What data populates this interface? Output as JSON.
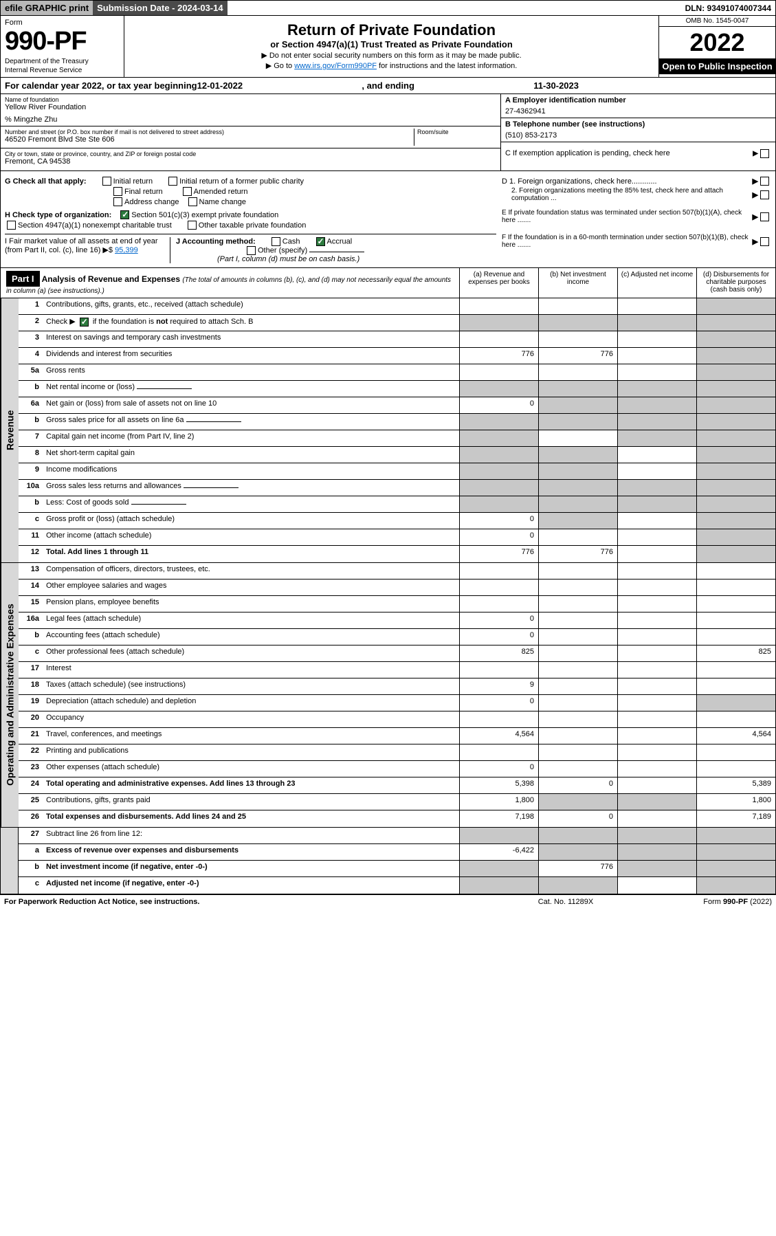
{
  "topbar": {
    "efile": "efile GRAPHIC print",
    "submission": "Submission Date - 2024-03-14",
    "dln": "DLN: 93491074007344"
  },
  "header": {
    "form_label": "Form",
    "form_number": "990-PF",
    "dept1": "Department of the Treasury",
    "dept2": "Internal Revenue Service",
    "title": "Return of Private Foundation",
    "subtitle": "or Section 4947(a)(1) Trust Treated as Private Foundation",
    "instr1": "▶ Do not enter social security numbers on this form as it may be made public.",
    "instr2_pre": "▶ Go to ",
    "instr2_link": "www.irs.gov/Form990PF",
    "instr2_post": " for instructions and the latest information.",
    "omb": "OMB No. 1545-0047",
    "year": "2022",
    "open": "Open to Public Inspection"
  },
  "calendar": {
    "text": "For calendar year 2022, or tax year beginning ",
    "begin": "12-01-2022",
    "mid": ", and ending ",
    "end": "11-30-2023"
  },
  "foundation": {
    "name_label": "Name of foundation",
    "name": "Yellow River Foundation",
    "care_of": "% Mingzhe Zhu",
    "addr_label": "Number and street (or P.O. box number if mail is not delivered to street address)",
    "addr": "46520 Fremont Blvd Ste Ste 606",
    "room_label": "Room/suite",
    "city_label": "City or town, state or province, country, and ZIP or foreign postal code",
    "city": "Fremont, CA  94538",
    "ein_label": "A Employer identification number",
    "ein": "27-4362941",
    "phone_label": "B Telephone number (see instructions)",
    "phone": "(510) 853-2173",
    "c_label": "C If exemption application is pending, check here",
    "d1": "D 1. Foreign organizations, check here............",
    "d2": "2. Foreign organizations meeting the 85% test, check here and attach computation ...",
    "e_label": "E  If private foundation status was terminated under section 507(b)(1)(A), check here .......",
    "f_label": "F  If the foundation is in a 60-month termination under section 507(b)(1)(B), check here ......."
  },
  "check": {
    "g_label": "G Check all that apply:",
    "initial": "Initial return",
    "final": "Final return",
    "address": "Address change",
    "initial_former": "Initial return of a former public charity",
    "amended": "Amended return",
    "name_change": "Name change",
    "h_label": "H Check type of organization:",
    "h_501c3": "Section 501(c)(3) exempt private foundation",
    "h_4947": "Section 4947(a)(1) nonexempt charitable trust",
    "h_other": "Other taxable private foundation",
    "i_label": "I Fair market value of all assets at end of year (from Part II, col. (c), line 16) ▶$ ",
    "i_val": "95,399",
    "j_label": "J Accounting method:",
    "j_cash": "Cash",
    "j_accrual": "Accrual",
    "j_other": "Other (specify)",
    "j_note": "(Part I, column (d) must be on cash basis.)"
  },
  "part1": {
    "label": "Part I",
    "title": "Analysis of Revenue and Expenses ",
    "note": "(The total of amounts in columns (b), (c), and (d) may not necessarily equal the amounts in column (a) (see instructions).)",
    "col_a": "(a)   Revenue and expenses per books",
    "col_b": "(b)  Net investment income",
    "col_c": "(c)  Adjusted net income",
    "col_d": "(d)  Disbursements for charitable purposes (cash basis only)"
  },
  "revenue_label": "Revenue",
  "expenses_label": "Operating and Administrative Expenses",
  "rows": [
    {
      "num": "1",
      "desc": "Contributions, gifts, grants, etc., received (attach schedule)",
      "a": "",
      "b": "",
      "c": "",
      "d": "",
      "shade_c": false,
      "shade_d": true
    },
    {
      "num": "2",
      "desc": "Check ▶ ☑ if the foundation is not required to attach Sch. B",
      "a": "",
      "b": "",
      "c": "",
      "d": "",
      "shade_a": true,
      "shade_b": true,
      "shade_c": true,
      "shade_d": true,
      "checkbox": true
    },
    {
      "num": "3",
      "desc": "Interest on savings and temporary cash investments",
      "a": "",
      "b": "",
      "c": "",
      "d": "",
      "shade_d": true
    },
    {
      "num": "4",
      "desc": "Dividends and interest from securities",
      "a": "776",
      "b": "776",
      "c": "",
      "d": "",
      "shade_d": true
    },
    {
      "num": "5a",
      "desc": "Gross rents",
      "a": "",
      "b": "",
      "c": "",
      "d": "",
      "shade_d": true
    },
    {
      "num": "b",
      "desc": "Net rental income or (loss)",
      "a": "",
      "b": "",
      "c": "",
      "d": "",
      "shade_a": true,
      "shade_b": true,
      "shade_c": true,
      "shade_d": true,
      "sub": true
    },
    {
      "num": "6a",
      "desc": "Net gain or (loss) from sale of assets not on line 10",
      "a": "0",
      "b": "",
      "c": "",
      "d": "",
      "shade_b": true,
      "shade_c": true,
      "shade_d": true
    },
    {
      "num": "b",
      "desc": "Gross sales price for all assets on line 6a",
      "a": "",
      "b": "",
      "c": "",
      "d": "",
      "shade_a": true,
      "shade_b": true,
      "shade_c": true,
      "shade_d": true,
      "sub": true
    },
    {
      "num": "7",
      "desc": "Capital gain net income (from Part IV, line 2)",
      "a": "",
      "b": "",
      "c": "",
      "d": "",
      "shade_a": true,
      "shade_c": true,
      "shade_d": true
    },
    {
      "num": "8",
      "desc": "Net short-term capital gain",
      "a": "",
      "b": "",
      "c": "",
      "d": "",
      "shade_a": true,
      "shade_b": true,
      "shade_d": true
    },
    {
      "num": "9",
      "desc": "Income modifications",
      "a": "",
      "b": "",
      "c": "",
      "d": "",
      "shade_a": true,
      "shade_b": true,
      "shade_d": true
    },
    {
      "num": "10a",
      "desc": "Gross sales less returns and allowances",
      "a": "",
      "b": "",
      "c": "",
      "d": "",
      "shade_a": true,
      "shade_b": true,
      "shade_c": true,
      "shade_d": true,
      "sub": true
    },
    {
      "num": "b",
      "desc": "Less: Cost of goods sold",
      "a": "",
      "b": "",
      "c": "",
      "d": "",
      "shade_a": true,
      "shade_b": true,
      "shade_c": true,
      "shade_d": true,
      "sub": true
    },
    {
      "num": "c",
      "desc": "Gross profit or (loss) (attach schedule)",
      "a": "0",
      "b": "",
      "c": "",
      "d": "",
      "shade_b": true,
      "shade_d": true
    },
    {
      "num": "11",
      "desc": "Other income (attach schedule)",
      "a": "0",
      "b": "",
      "c": "",
      "d": "",
      "shade_d": true
    },
    {
      "num": "12",
      "desc": "Total. Add lines 1 through 11",
      "a": "776",
      "b": "776",
      "c": "",
      "d": "",
      "bold": true,
      "shade_d": true
    }
  ],
  "exp_rows": [
    {
      "num": "13",
      "desc": "Compensation of officers, directors, trustees, etc.",
      "a": "",
      "b": "",
      "c": "",
      "d": ""
    },
    {
      "num": "14",
      "desc": "Other employee salaries and wages",
      "a": "",
      "b": "",
      "c": "",
      "d": ""
    },
    {
      "num": "15",
      "desc": "Pension plans, employee benefits",
      "a": "",
      "b": "",
      "c": "",
      "d": ""
    },
    {
      "num": "16a",
      "desc": "Legal fees (attach schedule)",
      "a": "0",
      "b": "",
      "c": "",
      "d": ""
    },
    {
      "num": "b",
      "desc": "Accounting fees (attach schedule)",
      "a": "0",
      "b": "",
      "c": "",
      "d": ""
    },
    {
      "num": "c",
      "desc": "Other professional fees (attach schedule)",
      "a": "825",
      "b": "",
      "c": "",
      "d": "825"
    },
    {
      "num": "17",
      "desc": "Interest",
      "a": "",
      "b": "",
      "c": "",
      "d": ""
    },
    {
      "num": "18",
      "desc": "Taxes (attach schedule) (see instructions)",
      "a": "9",
      "b": "",
      "c": "",
      "d": ""
    },
    {
      "num": "19",
      "desc": "Depreciation (attach schedule) and depletion",
      "a": "0",
      "b": "",
      "c": "",
      "d": "",
      "shade_d": true
    },
    {
      "num": "20",
      "desc": "Occupancy",
      "a": "",
      "b": "",
      "c": "",
      "d": ""
    },
    {
      "num": "21",
      "desc": "Travel, conferences, and meetings",
      "a": "4,564",
      "b": "",
      "c": "",
      "d": "4,564"
    },
    {
      "num": "22",
      "desc": "Printing and publications",
      "a": "",
      "b": "",
      "c": "",
      "d": ""
    },
    {
      "num": "23",
      "desc": "Other expenses (attach schedule)",
      "a": "0",
      "b": "",
      "c": "",
      "d": ""
    },
    {
      "num": "24",
      "desc": "Total operating and administrative expenses. Add lines 13 through 23",
      "a": "5,398",
      "b": "0",
      "c": "",
      "d": "5,389",
      "bold": true
    },
    {
      "num": "25",
      "desc": "Contributions, gifts, grants paid",
      "a": "1,800",
      "b": "",
      "c": "",
      "d": "1,800",
      "shade_b": true,
      "shade_c": true
    },
    {
      "num": "26",
      "desc": "Total expenses and disbursements. Add lines 24 and 25",
      "a": "7,198",
      "b": "0",
      "c": "",
      "d": "7,189",
      "bold": true
    }
  ],
  "bottom_rows": [
    {
      "num": "27",
      "desc": "Subtract line 26 from line 12:",
      "a": "",
      "b": "",
      "c": "",
      "d": "",
      "shade_a": true,
      "shade_b": true,
      "shade_c": true,
      "shade_d": true
    },
    {
      "num": "a",
      "desc": "Excess of revenue over expenses and disbursements",
      "a": "-6,422",
      "b": "",
      "c": "",
      "d": "",
      "bold": true,
      "shade_b": true,
      "shade_c": true,
      "shade_d": true
    },
    {
      "num": "b",
      "desc": "Net investment income (if negative, enter -0-)",
      "a": "",
      "b": "776",
      "c": "",
      "d": "",
      "bold": true,
      "shade_a": true,
      "shade_c": true,
      "shade_d": true
    },
    {
      "num": "c",
      "desc": "Adjusted net income (if negative, enter -0-)",
      "a": "",
      "b": "",
      "c": "",
      "d": "",
      "bold": true,
      "shade_a": true,
      "shade_b": true,
      "shade_d": true
    }
  ],
  "footer": {
    "left": "For Paperwork Reduction Act Notice, see instructions.",
    "mid": "Cat. No. 11289X",
    "right": "Form 990-PF (2022)"
  }
}
